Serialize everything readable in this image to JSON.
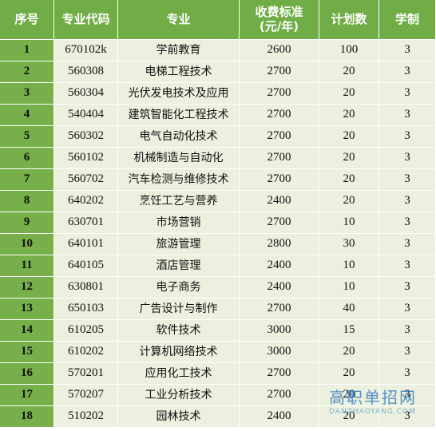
{
  "table": {
    "header": [
      "序号",
      "专业代码",
      "专业",
      "收费标准\n(元/年)",
      "计划数",
      "学制"
    ],
    "rows": [
      [
        "1",
        "670102k",
        "学前教育",
        "2600",
        "100",
        "3"
      ],
      [
        "2",
        "560308",
        "电梯工程技术",
        "2700",
        "20",
        "3"
      ],
      [
        "3",
        "560304",
        "光伏发电技术及应用",
        "2700",
        "20",
        "3"
      ],
      [
        "4",
        "540404",
        "建筑智能化工程技术",
        "2700",
        "20",
        "3"
      ],
      [
        "5",
        "560302",
        "电气自动化技术",
        "2700",
        "20",
        "3"
      ],
      [
        "6",
        "560102",
        "机械制造与自动化",
        "2700",
        "20",
        "3"
      ],
      [
        "7",
        "560702",
        "汽车检测与维修技术",
        "2700",
        "20",
        "3"
      ],
      [
        "8",
        "640202",
        "烹饪工艺与营养",
        "2400",
        "20",
        "3"
      ],
      [
        "9",
        "630701",
        "市场营销",
        "2700",
        "10",
        "3"
      ],
      [
        "10",
        "640101",
        "旅游管理",
        "2800",
        "30",
        "3"
      ],
      [
        "11",
        "640105",
        "酒店管理",
        "2400",
        "10",
        "3"
      ],
      [
        "12",
        "630801",
        "电子商务",
        "2400",
        "10",
        "3"
      ],
      [
        "13",
        "650103",
        "广告设计与制作",
        "2700",
        "40",
        "3"
      ],
      [
        "14",
        "610205",
        "软件技术",
        "3000",
        "15",
        "3"
      ],
      [
        "15",
        "610202",
        "计算机网络技术",
        "3000",
        "20",
        "3"
      ],
      [
        "16",
        "570201",
        "应用化工技术",
        "2700",
        "20",
        "3"
      ],
      [
        "17",
        "570207",
        "工业分析技术",
        "2700",
        "20",
        "3"
      ],
      [
        "18",
        "510202",
        "园林技术",
        "2400",
        "20",
        "3"
      ]
    ]
  },
  "watermark": {
    "name": "高职单招网",
    "url": "DANZHAOYANG.COM"
  }
}
